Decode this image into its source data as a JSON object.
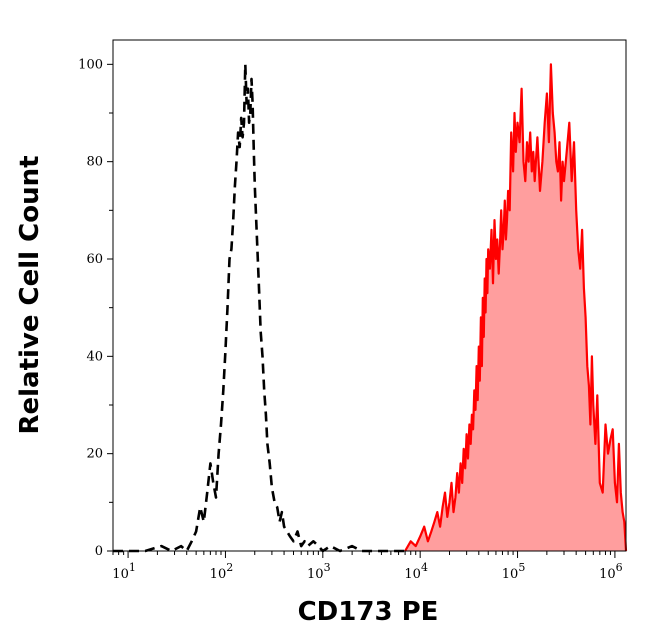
{
  "chart_data": {
    "type": "area",
    "title": "",
    "xlabel": "CD173 PE",
    "ylabel": "Relative Cell Count",
    "x_scale": "log",
    "xlim": [
      7,
      1300000
    ],
    "ylim": [
      0,
      105
    ],
    "x_ticks": [
      {
        "value": 10,
        "base": "10",
        "exp": "1"
      },
      {
        "value": 100,
        "base": "10",
        "exp": "2"
      },
      {
        "value": 1000,
        "base": "10",
        "exp": "3"
      },
      {
        "value": 10000,
        "base": "10",
        "exp": "4"
      },
      {
        "value": 100000,
        "base": "10",
        "exp": "5"
      },
      {
        "value": 1000000,
        "base": "10",
        "exp": "6"
      }
    ],
    "y_ticks": [
      {
        "value": 0,
        "label": "0"
      },
      {
        "value": 20,
        "label": "20"
      },
      {
        "value": 40,
        "label": "40"
      },
      {
        "value": 60,
        "label": "60"
      },
      {
        "value": 80,
        "label": "80"
      },
      {
        "value": 100,
        "label": "100"
      }
    ],
    "grid": false,
    "legend": "none",
    "series": [
      {
        "style": "dashed",
        "color": "#000000",
        "fill": "none",
        "x": [
          7,
          15,
          22,
          28,
          35,
          40,
          45,
          50,
          55,
          60,
          65,
          70,
          75,
          80,
          85,
          90,
          95,
          100,
          105,
          110,
          115,
          120,
          125,
          130,
          135,
          140,
          145,
          150,
          155,
          160,
          165,
          170,
          175,
          180,
          185,
          190,
          195,
          200,
          210,
          220,
          230,
          240,
          250,
          260,
          270,
          285,
          300,
          320,
          340,
          360,
          380,
          400,
          430,
          460,
          500,
          550,
          600,
          650,
          700,
          800,
          900,
          1000,
          1200,
          1500,
          2000,
          2500,
          3000,
          5000,
          7000
        ],
        "y": [
          0,
          0,
          1,
          0,
          1,
          0,
          2,
          4,
          9,
          6,
          12,
          18,
          14,
          11,
          20,
          26,
          33,
          41,
          50,
          60,
          62,
          68,
          75,
          80,
          86,
          83,
          89,
          85,
          88,
          100,
          92,
          95,
          88,
          90,
          97,
          92,
          83,
          75,
          65,
          55,
          45,
          40,
          33,
          28,
          22,
          18,
          13,
          10,
          9,
          6,
          8,
          5,
          4,
          3,
          2,
          4,
          1,
          2,
          1,
          2,
          1,
          0,
          1,
          0,
          1,
          0,
          0,
          0,
          0
        ]
      },
      {
        "style": "solid",
        "color": "#ff0000",
        "fill": "#ff9e9e",
        "x": [
          7000,
          8000,
          9000,
          10000,
          11000,
          12000,
          13000,
          14000,
          15000,
          16000,
          17000,
          18000,
          19000,
          20000,
          21000,
          22000,
          23000,
          24000,
          25000,
          26000,
          27000,
          28000,
          29000,
          30000,
          31000,
          32000,
          33000,
          34000,
          35000,
          36000,
          37000,
          38000,
          39000,
          40000,
          41000,
          42000,
          43000,
          44000,
          45000,
          46000,
          47000,
          48000,
          49000,
          50000,
          52000,
          54000,
          56000,
          58000,
          60000,
          62000,
          64000,
          66000,
          68000,
          70000,
          72000,
          74000,
          76000,
          78000,
          80000,
          83000,
          86000,
          90000,
          93000,
          96000,
          100000,
          105000,
          110000,
          115000,
          120000,
          125000,
          130000,
          135000,
          140000,
          145000,
          150000,
          160000,
          170000,
          180000,
          190000,
          200000,
          210000,
          220000,
          230000,
          240000,
          250000,
          260000,
          270000,
          280000,
          290000,
          300000,
          320000,
          340000,
          360000,
          380000,
          400000,
          420000,
          440000,
          460000,
          480000,
          500000,
          520000,
          540000,
          560000,
          580000,
          600000,
          630000,
          660000,
          700000,
          750000,
          800000,
          850000,
          900000,
          950000,
          1000000,
          1050000,
          1100000,
          1150000,
          1200000,
          1250000,
          1300000
        ],
        "y": [
          0,
          2,
          1,
          3,
          5,
          2,
          4,
          6,
          8,
          5,
          9,
          12,
          7,
          10,
          14,
          8,
          11,
          16,
          12,
          18,
          14,
          21,
          17,
          24,
          19,
          26,
          22,
          28,
          25,
          33,
          29,
          38,
          31,
          42,
          35,
          48,
          38,
          52,
          44,
          56,
          49,
          60,
          53,
          62,
          58,
          66,
          55,
          68,
          60,
          64,
          57,
          63,
          70,
          62,
          66,
          72,
          64,
          68,
          74,
          70,
          86,
          78,
          90,
          82,
          88,
          84,
          95,
          80,
          76,
          84,
          80,
          86,
          78,
          82,
          76,
          85,
          74,
          80,
          88,
          94,
          84,
          100,
          90,
          86,
          80,
          78,
          84,
          72,
          80,
          76,
          82,
          88,
          76,
          84,
          70,
          62,
          58,
          66,
          54,
          48,
          38,
          34,
          26,
          40,
          30,
          22,
          32,
          14,
          12,
          26,
          20,
          23,
          25,
          14,
          10,
          22,
          12,
          8,
          6,
          0
        ]
      }
    ]
  }
}
